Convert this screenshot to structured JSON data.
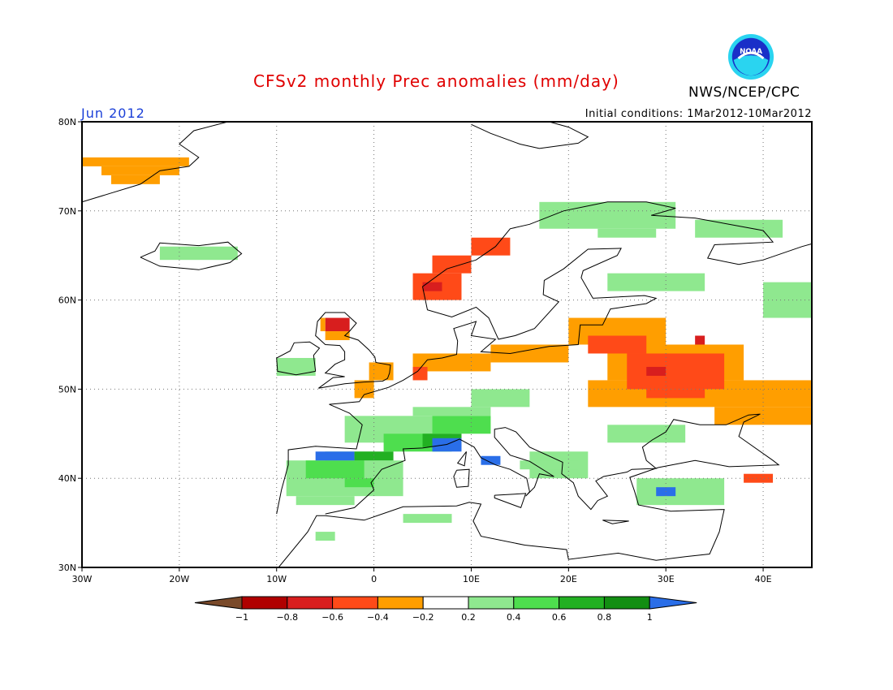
{
  "title": "CFSv2 monthly Prec anomalies (mm/day)",
  "month": "Jun 2012",
  "initial_conditions": "Initial conditions: 1Mar2012-10Mar2012",
  "agency": "NWS/NCEP/CPC",
  "logo_text": "NOAA",
  "map_extent": {
    "lon_min": -30,
    "lon_max": 45,
    "lat_min": 30,
    "lat_max": 80
  },
  "lat_ticks": [
    {
      "value": 80,
      "label": "80N"
    },
    {
      "value": 70,
      "label": "70N"
    },
    {
      "value": 60,
      "label": "60N"
    },
    {
      "value": 50,
      "label": "50N"
    },
    {
      "value": 40,
      "label": "40N"
    },
    {
      "value": 30,
      "label": "30N"
    }
  ],
  "lon_ticks": [
    {
      "value": -30,
      "label": "30W"
    },
    {
      "value": -20,
      "label": "20W"
    },
    {
      "value": -10,
      "label": "10W"
    },
    {
      "value": 0,
      "label": "0"
    },
    {
      "value": 10,
      "label": "10E"
    },
    {
      "value": 20,
      "label": "20E"
    },
    {
      "value": 30,
      "label": "30E"
    },
    {
      "value": 40,
      "label": "40E"
    }
  ],
  "legend": {
    "colors": [
      "#7a4a2a",
      "#b00000",
      "#d81e1e",
      "#ff4a18",
      "#ff9e00",
      "#ffffff",
      "#8fe88f",
      "#4ede4e",
      "#22b022",
      "#128e12",
      "#2a6ee8"
    ],
    "labels": [
      "-1",
      "-0.8",
      "-0.6",
      "-0.4",
      "-0.2",
      "0.2",
      "0.4",
      "0.6",
      "0.8",
      "1"
    ]
  },
  "anomaly_regions": [
    {
      "name": "greenland",
      "bin": -0.3,
      "cells": [
        [
          -30,
          -19,
          75,
          76
        ],
        [
          -28,
          -20,
          74,
          75
        ],
        [
          -27,
          -22,
          73,
          74
        ]
      ]
    },
    {
      "name": "iceland",
      "bin": 0.3,
      "cells": [
        [
          -22,
          -14,
          64.5,
          66
        ]
      ]
    },
    {
      "name": "norway-coast-south",
      "bin": -0.5,
      "cells": [
        [
          4,
          9,
          60,
          63
        ],
        [
          6,
          10,
          63,
          65
        ],
        [
          10,
          14,
          65,
          67
        ]
      ]
    },
    {
      "name": "norway-coast-core",
      "bin": -0.7,
      "cells": [
        [
          5,
          7,
          61,
          62
        ]
      ]
    },
    {
      "name": "scotland",
      "bin": -0.7,
      "cells": [
        [
          -5,
          -2.5,
          56.5,
          58
        ]
      ]
    },
    {
      "name": "scotland-ring",
      "bin": -0.3,
      "cells": [
        [
          -5,
          -2.5,
          55.5,
          56.5
        ],
        [
          -5.5,
          -5,
          56.5,
          58
        ]
      ]
    },
    {
      "name": "ireland",
      "bin": 0.3,
      "cells": [
        [
          -10,
          -6,
          51.5,
          53.5
        ]
      ]
    },
    {
      "name": "england-east",
      "bin": -0.3,
      "cells": [
        [
          -0.5,
          2,
          51,
          53
        ],
        [
          -2,
          0,
          49,
          51
        ]
      ]
    },
    {
      "name": "netherlands-germany",
      "bin": -0.3,
      "cells": [
        [
          4,
          12,
          52,
          54
        ],
        [
          12,
          20,
          53,
          55
        ]
      ]
    },
    {
      "name": "belgium",
      "bin": -0.5,
      "cells": [
        [
          4,
          5.5,
          51,
          52.5
        ]
      ]
    },
    {
      "name": "baltic-russia",
      "bin": -0.3,
      "cells": [
        [
          20,
          30,
          55,
          58
        ],
        [
          24,
          38,
          51,
          55
        ],
        [
          22,
          46,
          48,
          51
        ],
        [
          35,
          45,
          46,
          48
        ]
      ]
    },
    {
      "name": "russia-core",
      "bin": -0.5,
      "cells": [
        [
          22,
          28,
          54,
          56
        ],
        [
          26,
          36,
          50,
          54
        ],
        [
          28,
          34,
          49,
          50
        ]
      ]
    },
    {
      "name": "russia-peak",
      "bin": -0.7,
      "cells": [
        [
          28,
          30,
          51.5,
          52.5
        ],
        [
          33,
          34,
          55,
          56
        ]
      ]
    },
    {
      "name": "turkey-east",
      "bin": -0.5,
      "cells": [
        [
          38,
          41,
          39.5,
          40.5
        ]
      ]
    },
    {
      "name": "finland-north",
      "bin": 0.3,
      "cells": [
        [
          17,
          31,
          68,
          71
        ],
        [
          23,
          29,
          67,
          68
        ],
        [
          33,
          42,
          67,
          69
        ]
      ]
    },
    {
      "name": "russia-north",
      "bin": 0.3,
      "cells": [
        [
          24,
          34,
          61,
          63
        ],
        [
          40,
          45,
          58,
          62
        ]
      ]
    },
    {
      "name": "france",
      "bin": 0.3,
      "cells": [
        [
          -3,
          6,
          44,
          47
        ],
        [
          4,
          12,
          47,
          48
        ],
        [
          10,
          16,
          48,
          50
        ]
      ]
    },
    {
      "name": "france-alps",
      "bin": 0.5,
      "cells": [
        [
          1,
          8,
          43,
          45
        ],
        [
          6,
          12,
          45,
          47
        ]
      ]
    },
    {
      "name": "alps-core",
      "bin": 0.7,
      "cells": [
        [
          5,
          9,
          43.5,
          45
        ]
      ]
    },
    {
      "name": "alps-blue",
      "bin": 1.1,
      "cells": [
        [
          6,
          9,
          43,
          44.5
        ],
        [
          11,
          13,
          41.5,
          42.5
        ]
      ]
    },
    {
      "name": "spain",
      "bin": 0.3,
      "cells": [
        [
          -9,
          3,
          38,
          42
        ],
        [
          -8,
          -2,
          37,
          38
        ],
        [
          -5,
          0,
          42,
          43
        ]
      ]
    },
    {
      "name": "spain-core",
      "bin": 0.5,
      "cells": [
        [
          -7,
          -1,
          40,
          42
        ],
        [
          -3,
          0,
          39,
          40
        ]
      ]
    },
    {
      "name": "spain-north-blue",
      "bin": 1.1,
      "cells": [
        [
          -6,
          -2,
          42,
          43
        ]
      ]
    },
    {
      "name": "spain-north-green",
      "bin": 0.7,
      "cells": [
        [
          -2,
          2,
          42,
          43
        ]
      ]
    },
    {
      "name": "balkans",
      "bin": 0.3,
      "cells": [
        [
          16,
          22,
          40,
          43
        ],
        [
          24,
          32,
          44,
          46
        ],
        [
          15,
          21,
          41,
          42
        ]
      ]
    },
    {
      "name": "turkey-west",
      "bin": 0.3,
      "cells": [
        [
          27,
          36,
          37,
          40
        ]
      ]
    },
    {
      "name": "turkey-blue",
      "bin": 1.1,
      "cells": [
        [
          29,
          31,
          38,
          39
        ]
      ]
    },
    {
      "name": "north-africa",
      "bin": 0.3,
      "cells": [
        [
          -6,
          -4,
          33,
          34
        ],
        [
          3,
          8,
          35,
          36
        ]
      ]
    }
  ],
  "coastlines": [
    [
      [
        -10,
        36
      ],
      [
        -9.5,
        38.7
      ],
      [
        -8.8,
        41.5
      ],
      [
        -8.8,
        43.2
      ],
      [
        -6,
        43.6
      ],
      [
        -1.8,
        43.3
      ],
      [
        -1.2,
        46
      ],
      [
        -2.5,
        47.3
      ],
      [
        -4.6,
        48.3
      ],
      [
        -1.5,
        48.6
      ],
      [
        -1,
        49.4
      ],
      [
        1.5,
        50.2
      ],
      [
        3,
        51
      ],
      [
        4.5,
        52
      ],
      [
        5.5,
        53.3
      ],
      [
        7,
        53.5
      ],
      [
        8.5,
        53.9
      ],
      [
        8.6,
        55.4
      ],
      [
        8.2,
        56.8
      ],
      [
        10.5,
        57.6
      ],
      [
        10,
        56
      ],
      [
        12.5,
        55.6
      ],
      [
        11,
        54.2
      ],
      [
        14,
        54
      ],
      [
        18,
        54.8
      ],
      [
        21,
        55
      ],
      [
        21.2,
        57.2
      ],
      [
        23.5,
        57.2
      ],
      [
        24.3,
        59
      ],
      [
        28,
        59.6
      ],
      [
        29,
        60.2
      ],
      [
        27.8,
        60.5
      ],
      [
        22.5,
        60.2
      ],
      [
        21.3,
        62.5
      ],
      [
        21.5,
        63.3
      ],
      [
        25,
        65
      ],
      [
        25.4,
        65.8
      ],
      [
        22,
        65.7
      ],
      [
        19.5,
        63.5
      ],
      [
        17.5,
        62.2
      ],
      [
        17.4,
        60.6
      ],
      [
        19,
        59.8
      ],
      [
        16.5,
        56.8
      ],
      [
        14.5,
        56
      ],
      [
        12.8,
        55.6
      ],
      [
        11.8,
        58
      ],
      [
        10.5,
        59.2
      ],
      [
        8,
        58.1
      ],
      [
        5.5,
        58.9
      ],
      [
        5,
        61.5
      ],
      [
        7.5,
        63.5
      ],
      [
        10.5,
        64.5
      ],
      [
        12.5,
        66
      ],
      [
        14,
        68
      ],
      [
        16,
        68.5
      ],
      [
        19.5,
        70
      ],
      [
        24,
        71
      ],
      [
        28,
        71
      ],
      [
        31,
        70.3
      ],
      [
        28.5,
        69.5
      ],
      [
        33,
        69.2
      ],
      [
        40,
        67.8
      ],
      [
        41,
        66.5
      ],
      [
        35,
        66.2
      ],
      [
        34.3,
        64.7
      ],
      [
        37.5,
        64
      ],
      [
        40,
        64.5
      ],
      [
        44,
        66
      ],
      [
        45,
        66.3
      ]
    ],
    [
      [
        -5,
        36
      ],
      [
        -2,
        36.7
      ],
      [
        0,
        38.7
      ],
      [
        -0.3,
        39.5
      ],
      [
        0.8,
        41
      ],
      [
        3.2,
        42
      ],
      [
        3,
        43.3
      ],
      [
        5,
        43.4
      ],
      [
        7.5,
        43.8
      ],
      [
        8.8,
        44.4
      ],
      [
        10.3,
        43.5
      ],
      [
        11,
        42.3
      ],
      [
        12.5,
        41.5
      ],
      [
        14,
        41
      ],
      [
        15.7,
        40
      ],
      [
        16,
        38.5
      ],
      [
        15.6,
        38
      ],
      [
        16.5,
        39
      ],
      [
        17,
        40.5
      ],
      [
        18.5,
        40.2
      ],
      [
        16,
        41.9
      ],
      [
        14,
        42.6
      ],
      [
        12.4,
        44.6
      ],
      [
        12.4,
        45.5
      ],
      [
        13.5,
        45.7
      ],
      [
        14.6,
        45.2
      ],
      [
        16,
        43.5
      ],
      [
        19.4,
        41.8
      ],
      [
        19.3,
        40.5
      ],
      [
        20.5,
        39.5
      ],
      [
        21,
        38
      ],
      [
        22.3,
        36.5
      ],
      [
        23,
        37.5
      ],
      [
        24,
        38
      ],
      [
        22.8,
        39.7
      ],
      [
        23.6,
        40.2
      ],
      [
        26,
        40.7
      ],
      [
        26.5,
        41
      ],
      [
        29,
        41.1
      ],
      [
        28,
        42
      ],
      [
        27.6,
        43.5
      ],
      [
        28.6,
        44.3
      ],
      [
        30,
        45.2
      ],
      [
        30.8,
        46.6
      ],
      [
        33.5,
        46
      ],
      [
        36.2,
        46
      ],
      [
        38.5,
        47.1
      ],
      [
        39.7,
        47.2
      ],
      [
        38,
        46.3
      ],
      [
        37.5,
        44.7
      ],
      [
        41,
        42
      ],
      [
        41.6,
        41.5
      ],
      [
        36.5,
        41.3
      ],
      [
        33,
        42
      ],
      [
        29.2,
        41.2
      ],
      [
        26.3,
        40.1
      ],
      [
        26.8,
        38.5
      ],
      [
        27.2,
        37
      ],
      [
        30.5,
        36.3
      ],
      [
        36,
        36.5
      ],
      [
        35.5,
        34
      ],
      [
        34.5,
        31.5
      ],
      [
        32,
        31.2
      ],
      [
        29,
        30.8
      ],
      [
        25.1,
        31.6
      ],
      [
        20,
        30.9
      ],
      [
        19.8,
        32
      ],
      [
        15.5,
        32.5
      ],
      [
        11,
        33.5
      ],
      [
        10.2,
        35.2
      ],
      [
        11,
        37.1
      ],
      [
        9.8,
        37.3
      ],
      [
        8.5,
        36.9
      ],
      [
        3,
        36.8
      ],
      [
        -1,
        35.3
      ],
      [
        -5,
        35.8
      ],
      [
        -5.9,
        35.8
      ],
      [
        -6.8,
        34
      ],
      [
        -9.8,
        30
      ]
    ],
    [
      [
        -5.7,
        50.1
      ],
      [
        -4.2,
        51.3
      ],
      [
        -3,
        51.4
      ],
      [
        -5,
        51.8
      ],
      [
        -4,
        52.8
      ],
      [
        -3,
        53.3
      ],
      [
        -3,
        54.2
      ],
      [
        -3.5,
        54.9
      ],
      [
        -5,
        55
      ],
      [
        -6,
        56
      ],
      [
        -5.8,
        57.6
      ],
      [
        -5,
        58.6
      ],
      [
        -3,
        58.6
      ],
      [
        -2,
        57.6
      ],
      [
        -1.8,
        57.4
      ],
      [
        -2.5,
        56.5
      ],
      [
        -3,
        56
      ],
      [
        -1.6,
        55.5
      ],
      [
        -0.5,
        54.4
      ],
      [
        0.1,
        53.6
      ],
      [
        0.2,
        53
      ],
      [
        1.7,
        52.7
      ],
      [
        1.6,
        51.8
      ],
      [
        1.4,
        51.2
      ],
      [
        0.9,
        50.9
      ],
      [
        -1,
        50.8
      ],
      [
        -3,
        50.6
      ],
      [
        -5.7,
        50.1
      ]
    ],
    [
      [
        -6,
        52
      ],
      [
        -6.2,
        53.8
      ],
      [
        -5.6,
        54.6
      ],
      [
        -6.6,
        55.3
      ],
      [
        -8.2,
        55.2
      ],
      [
        -8.6,
        54.3
      ],
      [
        -10,
        53.5
      ],
      [
        -9.9,
        52
      ],
      [
        -8,
        51.6
      ],
      [
        -6,
        52
      ]
    ],
    [
      [
        -24,
        64.8
      ],
      [
        -22.5,
        65.5
      ],
      [
        -22,
        66.4
      ],
      [
        -18,
        66.1
      ],
      [
        -15,
        66.5
      ],
      [
        -13.6,
        65.2
      ],
      [
        -14.8,
        64.2
      ],
      [
        -18,
        63.4
      ],
      [
        -22,
        63.8
      ],
      [
        -24,
        64.8
      ]
    ],
    [
      [
        -30,
        71
      ],
      [
        -27,
        72
      ],
      [
        -24,
        73
      ],
      [
        -22,
        74.5
      ],
      [
        -19,
        75
      ],
      [
        -18,
        76
      ],
      [
        -20,
        77.5
      ],
      [
        -18.5,
        79
      ],
      [
        -15,
        80
      ]
    ],
    [
      [
        10,
        79.7
      ],
      [
        12,
        78.7
      ],
      [
        15,
        77.5
      ],
      [
        17,
        77
      ],
      [
        21,
        77.6
      ],
      [
        22,
        78.3
      ],
      [
        20,
        79.4
      ],
      [
        18,
        80
      ]
    ],
    [
      [
        8.5,
        40.9
      ],
      [
        9.8,
        41
      ],
      [
        9.7,
        39.1
      ],
      [
        8.5,
        39
      ],
      [
        8.2,
        40.2
      ],
      [
        8.5,
        40.9
      ]
    ],
    [
      [
        12.4,
        38.1
      ],
      [
        15.6,
        38.3
      ],
      [
        15.1,
        36.7
      ],
      [
        12.4,
        37.8
      ],
      [
        12.4,
        38.1
      ]
    ],
    [
      [
        23.5,
        35.3
      ],
      [
        26.2,
        35.2
      ],
      [
        24.5,
        34.9
      ],
      [
        23.5,
        35.3
      ]
    ],
    [
      [
        9.5,
        43
      ],
      [
        9.3,
        41.4
      ],
      [
        8.6,
        41.7
      ],
      [
        9.5,
        43
      ]
    ]
  ]
}
